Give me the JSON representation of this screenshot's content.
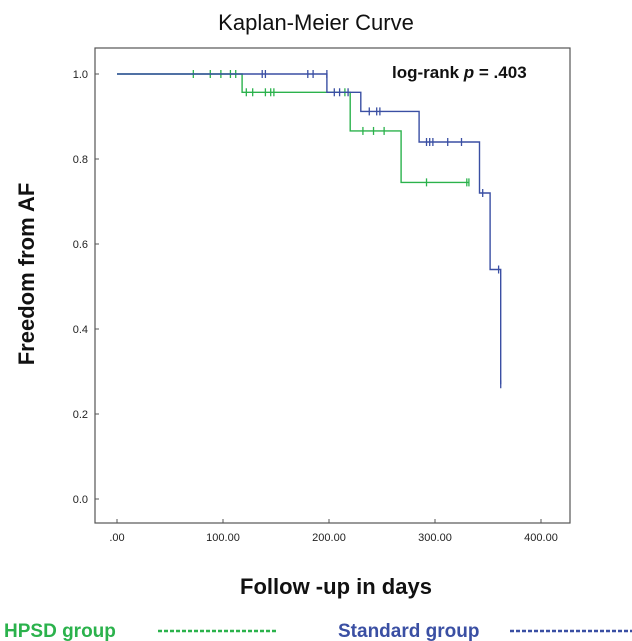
{
  "chart_data": {
    "type": "line",
    "title": "Kaplan-Meier Curve",
    "xlabel": "Follow -up in days",
    "ylabel": "Freedom from AF",
    "xlim": [
      0,
      400
    ],
    "ylim": [
      0,
      1.0
    ],
    "x_ticks": [
      ".00",
      "100.00",
      "200.00",
      "300.00",
      "400.00"
    ],
    "y_ticks": [
      "0.0",
      "0.2",
      "0.4",
      "0.6",
      "0.8",
      "1.0"
    ],
    "annotation_prefix": "log-rank ",
    "annotation_p": "p",
    "annotation_value": " = .403",
    "grid": false,
    "legend_position": "bottom",
    "series": [
      {
        "name": "HPSD group",
        "color": "#2bb24c",
        "steps": [
          [
            0,
            1.0
          ],
          [
            118,
            0.957
          ],
          [
            220,
            0.866
          ],
          [
            268,
            0.745
          ],
          [
            332,
            0.745
          ]
        ],
        "censored": [
          [
            72,
            1.0
          ],
          [
            88,
            1.0
          ],
          [
            98,
            1.0
          ],
          [
            107,
            1.0
          ],
          [
            112,
            1.0
          ],
          [
            122,
            0.957
          ],
          [
            128,
            0.957
          ],
          [
            140,
            0.957
          ],
          [
            145,
            0.957
          ],
          [
            148,
            0.957
          ],
          [
            215,
            0.957
          ],
          [
            232,
            0.866
          ],
          [
            242,
            0.866
          ],
          [
            252,
            0.866
          ],
          [
            292,
            0.745
          ],
          [
            330,
            0.745
          ],
          [
            332,
            0.745
          ]
        ]
      },
      {
        "name": "Standard group",
        "color": "#3a4fa3",
        "steps": [
          [
            0,
            1.0
          ],
          [
            198,
            0.957
          ],
          [
            230,
            0.912
          ],
          [
            285,
            0.84
          ],
          [
            342,
            0.72
          ],
          [
            352,
            0.54
          ],
          [
            362,
            0.27
          ]
        ],
        "censored": [
          [
            137,
            1.0
          ],
          [
            140,
            1.0
          ],
          [
            180,
            1.0
          ],
          [
            185,
            1.0
          ],
          [
            198,
            1.0
          ],
          [
            205,
            0.957
          ],
          [
            210,
            0.957
          ],
          [
            218,
            0.957
          ],
          [
            238,
            0.912
          ],
          [
            245,
            0.912
          ],
          [
            248,
            0.912
          ],
          [
            292,
            0.84
          ],
          [
            295,
            0.84
          ],
          [
            298,
            0.84
          ],
          [
            312,
            0.84
          ],
          [
            325,
            0.84
          ],
          [
            345,
            0.72
          ],
          [
            360,
            0.54
          ],
          [
            362,
            0.27
          ]
        ]
      }
    ]
  }
}
